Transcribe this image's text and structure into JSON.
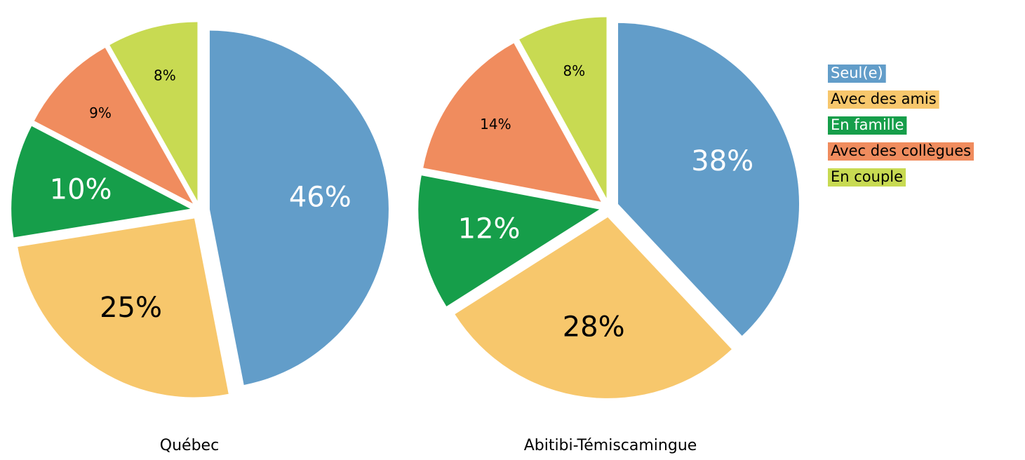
{
  "chart_data": [
    {
      "type": "pie",
      "title": "Québec",
      "categories": [
        "Seul(e)",
        "Avec des amis",
        "En famille",
        "Avec des collègues",
        "En couple"
      ],
      "values": [
        46,
        25,
        10,
        9,
        8
      ],
      "value_labels": [
        "46%",
        "25%",
        "10%",
        "9%",
        "8%"
      ],
      "colors": [
        "#629dc9",
        "#f7c76c",
        "#169e4a",
        "#f08c5e",
        "#c8da52"
      ]
    },
    {
      "type": "pie",
      "title": "Abitibi-Témiscamingue",
      "categories": [
        "Seul(e)",
        "Avec des amis",
        "En famille",
        "Avec des collègues",
        "En couple"
      ],
      "values": [
        38,
        28,
        12,
        14,
        8
      ],
      "value_labels": [
        "38%",
        "28%",
        "12%",
        "14%",
        "8%"
      ],
      "colors": [
        "#629dc9",
        "#f7c76c",
        "#169e4a",
        "#f08c5e",
        "#c8da52"
      ],
      "legend": "right"
    }
  ]
}
